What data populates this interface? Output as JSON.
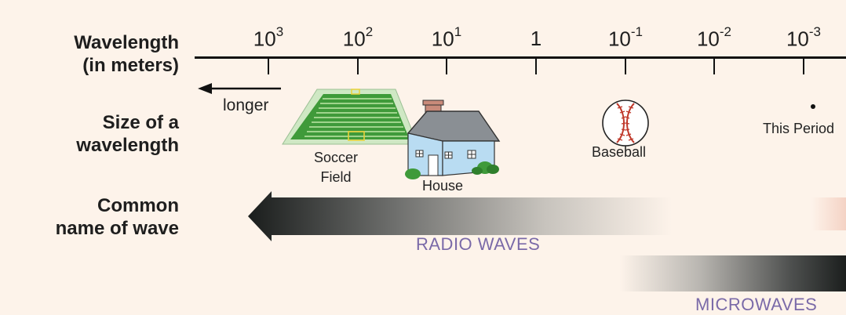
{
  "axis": {
    "title_line1": "Wavelength",
    "title_line2": "(in meters)",
    "ticks": [
      {
        "base": "10",
        "exp": "3"
      },
      {
        "base": "10",
        "exp": "2"
      },
      {
        "base": "10",
        "exp": "1"
      },
      {
        "base": "1",
        "exp": ""
      },
      {
        "base": "10",
        "exp": "-1"
      },
      {
        "base": "10",
        "exp": "-2"
      },
      {
        "base": "10",
        "exp": "-3"
      }
    ],
    "direction_label": "longer"
  },
  "size_row": {
    "label_line1": "Size of a",
    "label_line2": "wavelength",
    "objects": {
      "soccer_line1": "Soccer",
      "soccer_line2": "Field",
      "house": "House",
      "baseball": "Baseball",
      "period": "This Period"
    }
  },
  "name_row": {
    "label_line1": "Common",
    "label_line2": "name of wave",
    "waves": {
      "radio": "RADIO WAVES",
      "microwaves": "MICROWAVES"
    }
  },
  "colors": {
    "background": "#fdf3ea",
    "wave_text": "#7a6aa8",
    "field_green": "#3f9a3a",
    "house_blue": "#b9dcf2",
    "roof_gray": "#8a8f94",
    "baseball_red": "#c0392b"
  }
}
